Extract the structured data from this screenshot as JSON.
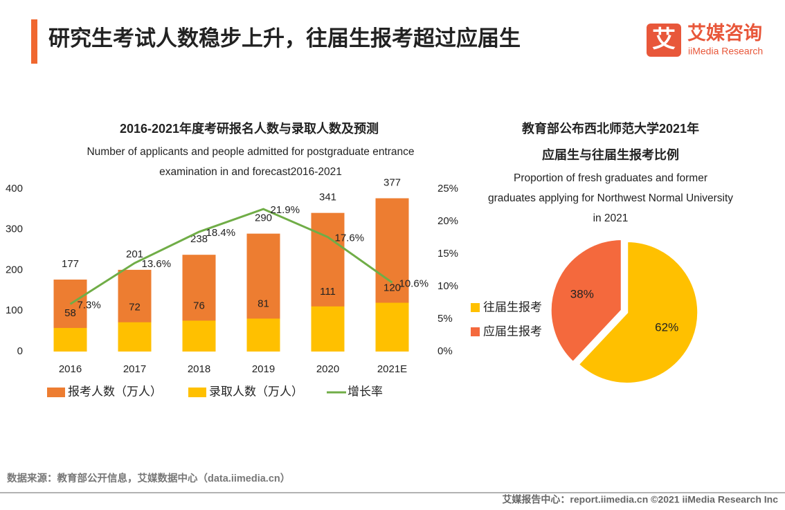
{
  "header": {
    "title": "研究生考试人数稳步上升，往届生报考超过应届生",
    "logo_cn": "艾媒咨询",
    "logo_en": "iiMedia Research",
    "logo_icon": "艾"
  },
  "chart_data": [
    {
      "type": "bar",
      "title": "2016-2021年度考研报名人数与录取人数及预测",
      "subtitle": [
        "Number of applicants and people admitted for postgraduate entrance",
        "examination in and forecast2016-2021"
      ],
      "categories": [
        "2016",
        "2017",
        "2018",
        "2019",
        "2020",
        "2021E"
      ],
      "series": [
        {
          "name": "报考人数（万人）",
          "type": "bar",
          "color": "#ed7d31",
          "values": [
            177,
            201,
            238,
            290,
            341,
            377
          ]
        },
        {
          "name": "录取人数（万人）",
          "type": "bar",
          "color": "#ffc000",
          "values": [
            58,
            72,
            76,
            81,
            111,
            120
          ]
        },
        {
          "name": "增长率",
          "type": "line",
          "axis": "y2",
          "color": "#70ad47",
          "values": [
            7.3,
            13.6,
            18.4,
            21.9,
            17.6,
            10.6
          ],
          "value_labels": [
            "7.3%",
            "13.6%",
            "18.4%",
            "21.9%",
            "17.6%",
            "10.6%"
          ]
        }
      ],
      "ylim": [
        0,
        400
      ],
      "yticks": [
        0,
        100,
        200,
        300,
        400
      ],
      "y2lim": [
        0,
        25
      ],
      "y2ticks": [
        {
          "value": 0,
          "label": "0%"
        },
        {
          "value": 5,
          "label": "5%"
        },
        {
          "value": 10,
          "label": "10%"
        },
        {
          "value": 15,
          "label": "15%"
        },
        {
          "value": 20,
          "label": "20%"
        },
        {
          "value": 25,
          "label": "25%"
        }
      ],
      "grid": false
    },
    {
      "type": "pie",
      "title": [
        "教育部公布西北师范大学2021年",
        "应届生与往届生报考比例"
      ],
      "subtitle": [
        "Proportion of fresh graduates and former",
        "graduates applying for Northwest Normal University",
        "in 2021"
      ],
      "categories": [
        "往届生报考",
        "应届生报考"
      ],
      "values": [
        62,
        38
      ],
      "value_labels": [
        "62%",
        "38%"
      ],
      "colors": [
        "#ffc000",
        "#f4693d"
      ]
    }
  ],
  "source": "数据来源：教育部公开信息，艾媒数据中心（data.iimedia.cn）",
  "footer": "艾媒报告中心：report.iimedia.cn  ©2021  iiMedia Research  Inc"
}
